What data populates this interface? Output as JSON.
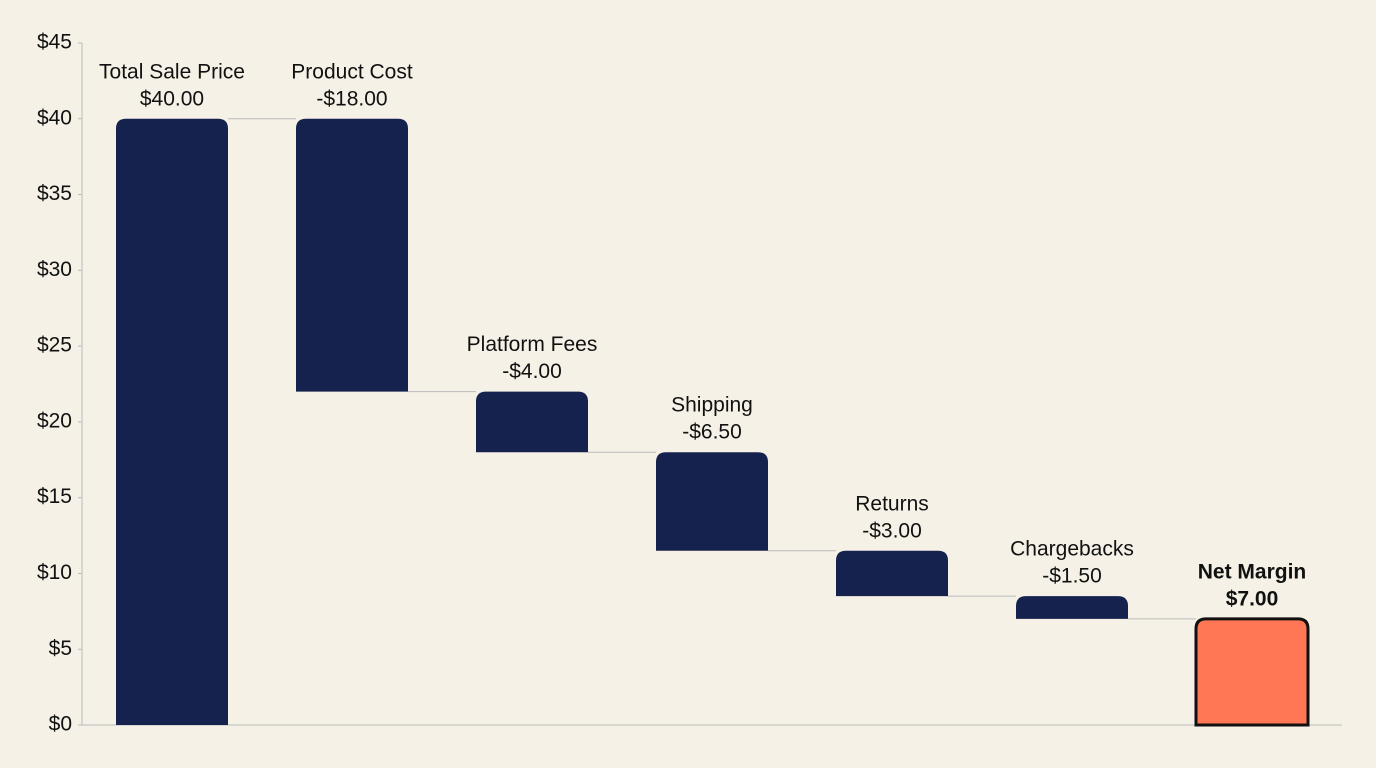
{
  "chart_data": {
    "type": "waterfall",
    "categories": [
      "Total Sale Price",
      "Product Cost",
      "Platform Fees",
      "Shipping",
      "Returns",
      "Chargebacks",
      "Net Margin"
    ],
    "values": [
      40,
      -18,
      -4,
      -6.5,
      -3,
      -1.5,
      7
    ],
    "value_labels": [
      "$40.00",
      "-$18.00",
      "-$4.00",
      "-$6.50",
      "-$3.00",
      "-$1.50",
      "$7.00"
    ],
    "measure": [
      "absolute",
      "relative",
      "relative",
      "relative",
      "relative",
      "relative",
      "total"
    ],
    "color": "#16224e",
    "total_color": "#ff7755",
    "ylim": [
      0,
      45
    ],
    "yticks": [
      {
        "value": 0,
        "label": "$0"
      },
      {
        "value": 5,
        "label": "$5"
      },
      {
        "value": 10,
        "label": "$10"
      },
      {
        "value": 15,
        "label": "$15"
      },
      {
        "value": 20,
        "label": "$20"
      },
      {
        "value": 25,
        "label": "$25"
      },
      {
        "value": 30,
        "label": "$30"
      },
      {
        "value": 35,
        "label": "$35"
      },
      {
        "value": 40,
        "label": "$40"
      },
      {
        "value": 45,
        "label": "$45"
      }
    ],
    "grid": false
  }
}
